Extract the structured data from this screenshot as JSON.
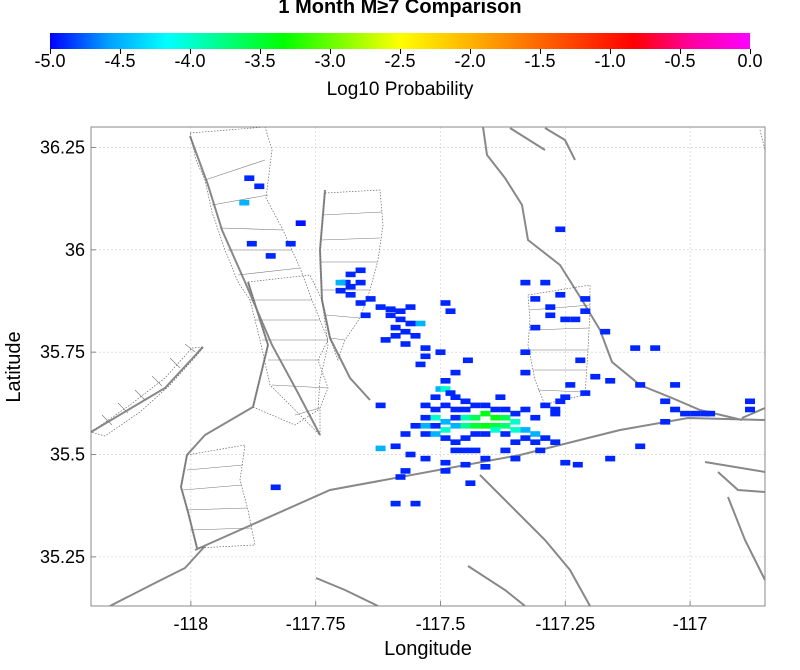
{
  "title": "1 Month M≥7 Comparison",
  "colorbar": {
    "label": "Log10 Probability",
    "min": -5.0,
    "max": 0.0,
    "tick_labels": [
      "-5.0",
      "-4.5",
      "-4.0",
      "-3.5",
      "-3.0",
      "-2.5",
      "-2.0",
      "-1.5",
      "-1.0",
      "-0.5",
      "0.0"
    ],
    "colors": [
      "#0000ff",
      "#00a0ff",
      "#00ffff",
      "#00ff80",
      "#00ff00",
      "#80ff00",
      "#ffff00",
      "#ffc000",
      "#ff8000",
      "#ff4000",
      "#ff0000",
      "#ff00a0",
      "#ff00ff"
    ]
  },
  "axes": {
    "xlabel": "Longitude",
    "ylabel": "Latitude",
    "xlim": [
      -118.2,
      -116.85
    ],
    "ylim": [
      35.13,
      36.3
    ],
    "xticks": [
      -118,
      -117.75,
      -117.5,
      -117.25,
      -117
    ],
    "xtick_labels": [
      "-118",
      "-117.75",
      "-117.5",
      "-117.25",
      "-117"
    ],
    "yticks": [
      35.25,
      35.5,
      35.75,
      36,
      36.25
    ],
    "ytick_labels": [
      "35.25",
      "35.5",
      "35.75",
      "36",
      "36.25"
    ],
    "grid": true
  },
  "chart_data": {
    "type": "heatmap",
    "cell_size_deg": 0.025,
    "value_name": "Log10 Probability",
    "cells": [
      [
        -117.883,
        36.175,
        -4.9
      ],
      [
        -117.863,
        36.155,
        -4.9
      ],
      [
        -117.893,
        36.115,
        -4.5
      ],
      [
        -117.78,
        36.065,
        -4.95
      ],
      [
        -117.8,
        36.015,
        -4.9
      ],
      [
        -117.878,
        36.015,
        -4.9
      ],
      [
        -117.84,
        35.985,
        -4.9
      ],
      [
        -117.66,
        35.95,
        -4.9
      ],
      [
        -117.68,
        35.94,
        -4.9
      ],
      [
        -117.69,
        35.92,
        -4.9
      ],
      [
        -117.66,
        35.92,
        -4.9
      ],
      [
        -117.7,
        35.92,
        -4.5
      ],
      [
        -117.68,
        35.91,
        -4.9
      ],
      [
        -117.7,
        35.9,
        -4.9
      ],
      [
        -117.68,
        35.89,
        -4.9
      ],
      [
        -117.64,
        35.88,
        -4.9
      ],
      [
        -117.66,
        35.87,
        -4.9
      ],
      [
        -117.62,
        35.86,
        -4.9
      ],
      [
        -117.6,
        35.855,
        -4.9
      ],
      [
        -117.58,
        35.85,
        -4.9
      ],
      [
        -117.56,
        35.86,
        -4.9
      ],
      [
        -117.6,
        35.84,
        -4.9
      ],
      [
        -117.58,
        35.83,
        -4.9
      ],
      [
        -117.56,
        35.82,
        -4.9
      ],
      [
        -117.54,
        35.82,
        -4.5
      ],
      [
        -117.65,
        35.84,
        -4.9
      ],
      [
        -117.59,
        35.81,
        -4.9
      ],
      [
        -117.57,
        35.8,
        -4.9
      ],
      [
        -117.55,
        35.79,
        -4.9
      ],
      [
        -117.59,
        35.79,
        -4.9
      ],
      [
        -117.61,
        35.78,
        -4.9
      ],
      [
        -117.57,
        35.77,
        -4.9
      ],
      [
        -117.49,
        35.87,
        -4.9
      ],
      [
        -117.48,
        35.85,
        -4.9
      ],
      [
        -117.53,
        35.76,
        -4.9
      ],
      [
        -117.5,
        35.75,
        -4.9
      ],
      [
        -117.53,
        35.74,
        -4.9
      ],
      [
        -117.54,
        35.72,
        -4.9
      ],
      [
        -117.47,
        35.7,
        -4.9
      ],
      [
        -117.445,
        35.73,
        -4.9
      ],
      [
        -117.49,
        35.68,
        -4.9
      ],
      [
        -117.5,
        35.66,
        -4.5
      ],
      [
        -117.49,
        35.66,
        -4.0
      ],
      [
        -117.48,
        35.65,
        -4.9
      ],
      [
        -117.51,
        35.64,
        -4.9
      ],
      [
        -117.53,
        35.62,
        -4.9
      ],
      [
        -117.47,
        35.64,
        -4.9
      ],
      [
        -117.45,
        35.63,
        -4.9
      ],
      [
        -117.51,
        35.61,
        -4.9
      ],
      [
        -117.49,
        35.62,
        -4.9
      ],
      [
        -117.47,
        35.61,
        -4.9
      ],
      [
        -117.45,
        35.61,
        -4.9
      ],
      [
        -117.43,
        35.62,
        -4.9
      ],
      [
        -117.41,
        35.62,
        -4.9
      ],
      [
        -117.39,
        35.61,
        -4.9
      ],
      [
        -117.38,
        35.64,
        -4.9
      ],
      [
        -117.37,
        35.61,
        -4.9
      ],
      [
        -117.35,
        35.6,
        -4.9
      ],
      [
        -117.33,
        35.61,
        -4.9
      ],
      [
        -117.31,
        35.59,
        -4.9
      ],
      [
        -117.29,
        35.62,
        -4.9
      ],
      [
        -117.27,
        35.6,
        -4.9
      ],
      [
        -117.53,
        35.59,
        -4.9
      ],
      [
        -117.51,
        35.59,
        -4.0
      ],
      [
        -117.49,
        35.58,
        -4.5
      ],
      [
        -117.47,
        35.59,
        -4.9
      ],
      [
        -117.45,
        35.59,
        -3.9
      ],
      [
        -117.43,
        35.59,
        -3.6
      ],
      [
        -117.41,
        35.6,
        -3.4
      ],
      [
        -117.39,
        35.59,
        -3.4
      ],
      [
        -117.37,
        35.59,
        -3.6
      ],
      [
        -117.35,
        35.58,
        -4.0
      ],
      [
        -117.55,
        35.57,
        -4.9
      ],
      [
        -117.53,
        35.57,
        -4.5
      ],
      [
        -117.51,
        35.57,
        -4.9
      ],
      [
        -117.49,
        35.56,
        -4.0
      ],
      [
        -117.47,
        35.57,
        -4.5
      ],
      [
        -117.45,
        35.57,
        -3.8
      ],
      [
        -117.43,
        35.57,
        -3.5
      ],
      [
        -117.41,
        35.57,
        -3.4
      ],
      [
        -117.39,
        35.57,
        -3.5
      ],
      [
        -117.37,
        35.57,
        -3.7
      ],
      [
        -117.35,
        35.56,
        -4.0
      ],
      [
        -117.33,
        35.56,
        -4.5
      ],
      [
        -117.31,
        35.55,
        -4.5
      ],
      [
        -117.57,
        35.55,
        -4.9
      ],
      [
        -117.53,
        35.55,
        -4.9
      ],
      [
        -117.51,
        35.55,
        -4.5
      ],
      [
        -117.49,
        35.54,
        -4.9
      ],
      [
        -117.47,
        35.53,
        -4.9
      ],
      [
        -117.45,
        35.54,
        -4.9
      ],
      [
        -117.43,
        35.55,
        -4.9
      ],
      [
        -117.41,
        35.55,
        -4.9
      ],
      [
        -117.39,
        35.56,
        -4.0
      ],
      [
        -117.37,
        35.55,
        -4.9
      ],
      [
        -117.35,
        35.53,
        -4.9
      ],
      [
        -117.33,
        35.54,
        -4.9
      ],
      [
        -117.31,
        35.53,
        -4.9
      ],
      [
        -117.29,
        35.54,
        -4.9
      ],
      [
        -117.27,
        35.53,
        -4.9
      ],
      [
        -117.47,
        35.51,
        -4.9
      ],
      [
        -117.45,
        35.51,
        -4.9
      ],
      [
        -117.43,
        35.51,
        -4.9
      ],
      [
        -117.37,
        35.51,
        -4.9
      ],
      [
        -117.35,
        35.49,
        -4.9
      ],
      [
        -117.59,
        35.52,
        -4.9
      ],
      [
        -117.62,
        35.515,
        -4.5
      ],
      [
        -117.56,
        35.5,
        -4.9
      ],
      [
        -117.53,
        35.49,
        -4.9
      ],
      [
        -117.49,
        35.48,
        -4.9
      ],
      [
        -117.45,
        35.475,
        -4.9
      ],
      [
        -117.41,
        35.49,
        -4.9
      ],
      [
        -117.41,
        35.47,
        -4.9
      ],
      [
        -117.57,
        35.46,
        -4.9
      ],
      [
        -117.49,
        35.46,
        -4.9
      ],
      [
        -117.58,
        35.445,
        -4.9
      ],
      [
        -117.44,
        35.43,
        -4.9
      ],
      [
        -117.59,
        35.38,
        -4.9
      ],
      [
        -117.55,
        35.38,
        -4.9
      ],
      [
        -117.83,
        35.42,
        -4.9
      ],
      [
        -117.62,
        35.62,
        -4.9
      ],
      [
        -117.3,
        35.51,
        -4.9
      ],
      [
        -117.25,
        35.48,
        -4.9
      ],
      [
        -117.225,
        35.475,
        -4.9
      ],
      [
        -117.16,
        35.49,
        -4.9
      ],
      [
        -117.33,
        35.92,
        -4.9
      ],
      [
        -117.31,
        35.88,
        -4.9
      ],
      [
        -117.29,
        35.92,
        -4.9
      ],
      [
        -117.28,
        35.86,
        -4.9
      ],
      [
        -117.28,
        35.84,
        -4.9
      ],
      [
        -117.26,
        35.89,
        -4.9
      ],
      [
        -117.25,
        35.83,
        -4.9
      ],
      [
        -117.31,
        35.81,
        -4.9
      ],
      [
        -117.33,
        35.75,
        -4.9
      ],
      [
        -117.33,
        35.7,
        -4.9
      ],
      [
        -117.23,
        35.83,
        -4.9
      ],
      [
        -117.22,
        35.73,
        -4.9
      ],
      [
        -117.21,
        35.88,
        -4.9
      ],
      [
        -117.21,
        35.85,
        -4.9
      ],
      [
        -117.17,
        35.8,
        -4.9
      ],
      [
        -117.19,
        35.69,
        -4.9
      ],
      [
        -117.16,
        35.68,
        -4.9
      ],
      [
        -117.24,
        35.67,
        -4.9
      ],
      [
        -117.21,
        35.65,
        -4.9
      ],
      [
        -117.25,
        35.64,
        -4.9
      ],
      [
        -117.26,
        35.63,
        -4.9
      ],
      [
        -117.27,
        35.61,
        -4.9
      ],
      [
        -117.26,
        36.05,
        -4.9
      ],
      [
        -117.11,
        35.76,
        -4.9
      ],
      [
        -117.07,
        35.76,
        -4.9
      ],
      [
        -117.1,
        35.67,
        -4.9
      ],
      [
        -117.03,
        35.67,
        -4.9
      ],
      [
        -117.05,
        35.63,
        -4.9
      ],
      [
        -117.03,
        35.61,
        -4.9
      ],
      [
        -117.05,
        35.58,
        -4.9
      ],
      [
        -117.01,
        35.6,
        -4.9
      ],
      [
        -116.99,
        35.6,
        -4.9
      ],
      [
        -116.97,
        35.6,
        -4.9
      ],
      [
        -116.96,
        35.6,
        -4.9
      ],
      [
        -116.88,
        35.63,
        -4.9
      ],
      [
        -116.88,
        35.61,
        -4.9
      ],
      [
        -117.1,
        35.52,
        -4.9
      ]
    ]
  }
}
